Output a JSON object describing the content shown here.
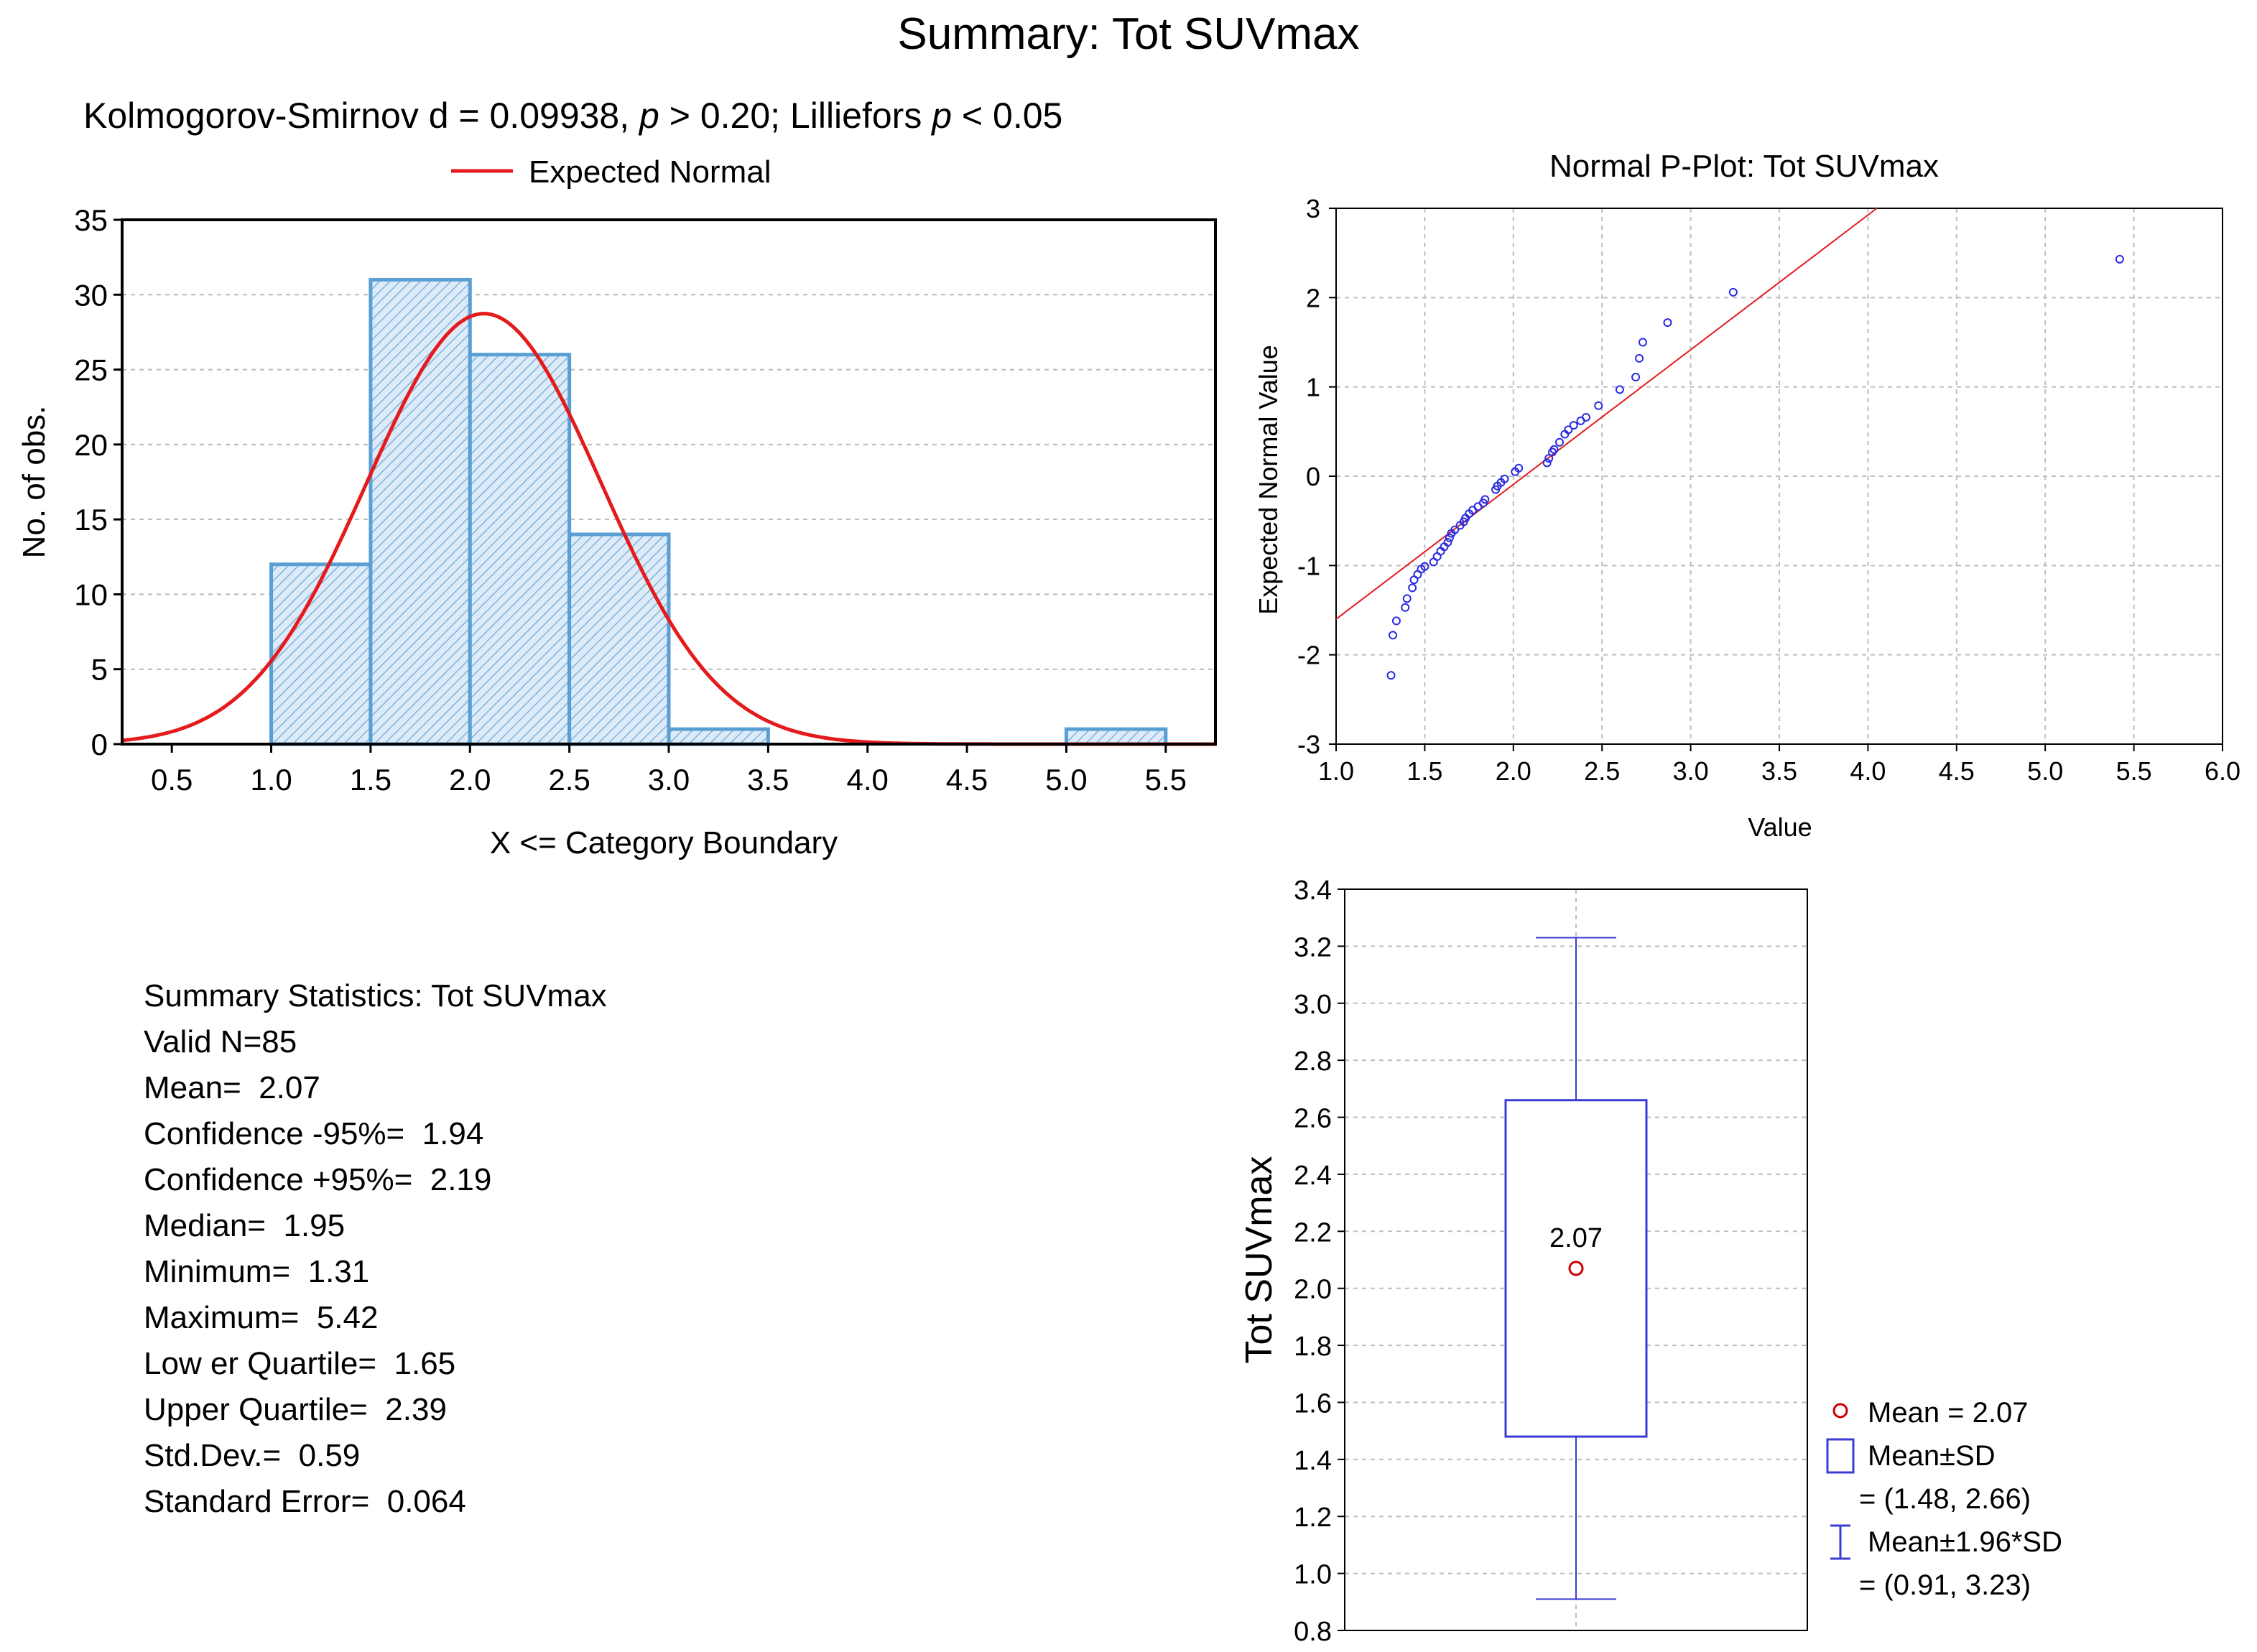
{
  "title": "Summary: Tot SUVmax",
  "chart_data": [
    {
      "type": "bar",
      "name": "histogram",
      "subtitle": {
        "prefix": "Kolmogorov-Smirnov d = 0.09938, ",
        "p1_italic": "p",
        "mid": " > 0.20; Lilliefors ",
        "p2_italic": "p",
        "suffix": " < 0.05"
      },
      "legend": "Expected Normal",
      "xlabel": "X <= Category Boundary",
      "ylabel": "No. of obs.",
      "xlim": [
        0.25,
        5.75
      ],
      "ylim": [
        0,
        35
      ],
      "xticks": [
        "0.5",
        "1.0",
        "1.5",
        "2.0",
        "2.5",
        "3.0",
        "3.5",
        "4.0",
        "4.5",
        "5.0",
        "5.5"
      ],
      "yticks": [
        "0",
        "5",
        "10",
        "15",
        "20",
        "25",
        "30",
        "35"
      ],
      "bins": [
        {
          "low": 1.0,
          "high": 1.5,
          "count": 12
        },
        {
          "low": 1.5,
          "high": 2.0,
          "count": 31
        },
        {
          "low": 2.0,
          "high": 2.5,
          "count": 26
        },
        {
          "low": 2.5,
          "high": 3.0,
          "count": 14
        },
        {
          "low": 3.0,
          "high": 3.5,
          "count": 1
        },
        {
          "low": 5.0,
          "high": 5.5,
          "count": 1
        }
      ],
      "normal_curve": {
        "n": 85,
        "mean": 2.07,
        "sd": 0.59,
        "bin_width": 0.5
      },
      "bar_color": "#5a9fd4",
      "curve_color": "#e41a1c"
    },
    {
      "type": "scatter",
      "name": "normal-p-plot",
      "title": "Normal P-Plot: Tot SUVmax",
      "xlabel": "Value",
      "ylabel": "Expected Normal Value",
      "xlim": [
        1.0,
        6.0
      ],
      "ylim": [
        -3,
        3
      ],
      "xticks": [
        "1.0",
        "1.5",
        "2.0",
        "2.5",
        "3.0",
        "3.5",
        "4.0",
        "4.5",
        "5.0",
        "5.5",
        "6.0"
      ],
      "yticks": [
        "-3",
        "-2",
        "-1",
        "0",
        "1",
        "2",
        "3"
      ],
      "line": {
        "x1": 1.0,
        "y1": -1.6,
        "x2": 4.05,
        "y2": 3.0
      },
      "points": [
        [
          1.31,
          -2.23
        ],
        [
          1.32,
          -1.78
        ],
        [
          1.34,
          -1.62
        ],
        [
          1.39,
          -1.47
        ],
        [
          1.4,
          -1.37
        ],
        [
          1.43,
          -1.25
        ],
        [
          1.44,
          -1.16
        ],
        [
          1.46,
          -1.1
        ],
        [
          1.48,
          -1.04
        ],
        [
          1.5,
          -1.01
        ],
        [
          1.55,
          -0.96
        ],
        [
          1.57,
          -0.9
        ],
        [
          1.59,
          -0.84
        ],
        [
          1.61,
          -0.79
        ],
        [
          1.63,
          -0.74
        ],
        [
          1.64,
          -0.69
        ],
        [
          1.65,
          -0.64
        ],
        [
          1.67,
          -0.6
        ],
        [
          1.7,
          -0.55
        ],
        [
          1.72,
          -0.51
        ],
        [
          1.73,
          -0.47
        ],
        [
          1.75,
          -0.42
        ],
        [
          1.77,
          -0.38
        ],
        [
          1.8,
          -0.34
        ],
        [
          1.83,
          -0.3
        ],
        [
          1.84,
          -0.26
        ],
        [
          1.9,
          -0.15
        ],
        [
          1.91,
          -0.11
        ],
        [
          1.93,
          -0.07
        ],
        [
          1.95,
          -0.03
        ],
        [
          2.01,
          0.05
        ],
        [
          2.03,
          0.09
        ],
        [
          2.19,
          0.15
        ],
        [
          2.2,
          0.2
        ],
        [
          2.22,
          0.27
        ],
        [
          2.23,
          0.3
        ],
        [
          2.26,
          0.38
        ],
        [
          2.29,
          0.47
        ],
        [
          2.31,
          0.52
        ],
        [
          2.34,
          0.57
        ],
        [
          2.38,
          0.62
        ],
        [
          2.41,
          0.66
        ],
        [
          2.48,
          0.79
        ],
        [
          2.6,
          0.97
        ],
        [
          2.69,
          1.11
        ],
        [
          2.71,
          1.32
        ],
        [
          2.73,
          1.5
        ],
        [
          2.87,
          1.72
        ],
        [
          3.24,
          2.06
        ],
        [
          5.42,
          2.43
        ]
      ],
      "marker_color": "#2a2ae0",
      "line_color": "#e41a1c"
    },
    {
      "type": "box",
      "name": "box-plot",
      "ylabel": "Tot SUVmax",
      "ylim": [
        0.8,
        3.4
      ],
      "yticks": [
        "0.8",
        "1.0",
        "1.2",
        "1.4",
        "1.6",
        "1.8",
        "2.0",
        "2.2",
        "2.4",
        "2.6",
        "2.8",
        "3.0",
        "3.2",
        "3.4"
      ],
      "mean": 2.07,
      "mean_label": "2.07",
      "box_low": 1.48,
      "box_high": 2.66,
      "whisker_low": 0.91,
      "whisker_high": 3.23,
      "color": "#3b3bd6",
      "mean_color": "#cc0000",
      "legend": {
        "mean": "Mean = 2.07",
        "sd_label": "Mean±SD",
        "sd_range": "= (1.48, 2.66)",
        "ci_label": "Mean±1.96*SD",
        "ci_range": "= (0.91, 3.23)"
      }
    }
  ],
  "summary": {
    "header": "Summary Statistics: Tot SUVmax",
    "valid_n": "Valid N=85",
    "mean": "Mean=  2.07",
    "conf_low": "Confidence -95%=  1.94",
    "conf_high": "Confidence +95%=  2.19",
    "median": "Median=  1.95",
    "minimum": "Minimum=  1.31",
    "maximum": "Maximum=  5.42",
    "lower_quartile": "Low er Quartile=  1.65",
    "upper_quartile": "Upper Quartile=  2.39",
    "std_dev": "Std.Dev.=  0.59",
    "std_error": "Standard Error=  0.064"
  }
}
